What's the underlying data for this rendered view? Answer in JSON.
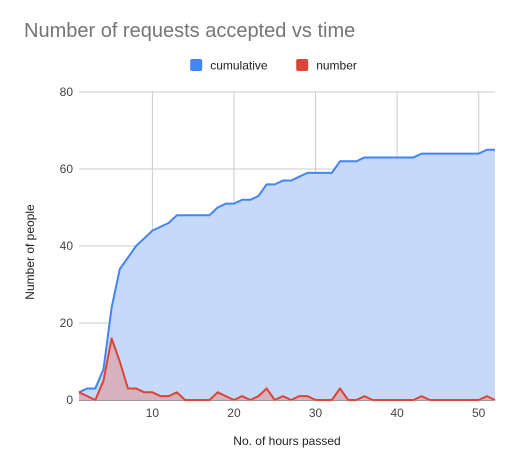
{
  "chart_data": {
    "type": "area",
    "title": "Number of requests accepted vs time",
    "xlabel": "No. of hours passed",
    "ylabel": "Number of people",
    "xlim": [
      1,
      52
    ],
    "ylim": [
      0,
      80
    ],
    "x_ticks": [
      10,
      20,
      30,
      40,
      50
    ],
    "y_ticks": [
      0,
      20,
      40,
      60,
      80
    ],
    "grid": true,
    "legend_position": "top",
    "x": [
      1,
      2,
      3,
      4,
      5,
      6,
      7,
      8,
      9,
      10,
      11,
      12,
      13,
      14,
      15,
      16,
      17,
      18,
      19,
      20,
      21,
      22,
      23,
      24,
      25,
      26,
      27,
      28,
      29,
      30,
      31,
      32,
      33,
      34,
      35,
      36,
      37,
      38,
      39,
      40,
      41,
      42,
      43,
      44,
      45,
      46,
      47,
      48,
      49,
      50,
      51,
      52
    ],
    "series": [
      {
        "name": "cumulative",
        "color": "#4285f4",
        "fill": "#c6d9f8",
        "values": [
          2,
          3,
          3,
          8,
          24,
          34,
          37,
          40,
          42,
          44,
          45,
          46,
          48,
          48,
          48,
          48,
          48,
          50,
          51,
          51,
          52,
          52,
          53,
          56,
          56,
          57,
          57,
          58,
          59,
          59,
          59,
          59,
          62,
          62,
          62,
          63,
          63,
          63,
          63,
          63,
          63,
          63,
          64,
          64,
          64,
          64,
          64,
          64,
          64,
          64,
          65,
          65
        ]
      },
      {
        "name": "number",
        "color": "#db4437",
        "fill": "#d8a9b4",
        "values": [
          2,
          1,
          0,
          5,
          16,
          10,
          3,
          3,
          2,
          2,
          1,
          1,
          2,
          0,
          0,
          0,
          0,
          2,
          1,
          0,
          1,
          0,
          1,
          3,
          0,
          1,
          0,
          1,
          1,
          0,
          0,
          0,
          3,
          0,
          0,
          1,
          0,
          0,
          0,
          0,
          0,
          0,
          1,
          0,
          0,
          0,
          0,
          0,
          0,
          0,
          1,
          0
        ]
      }
    ]
  }
}
